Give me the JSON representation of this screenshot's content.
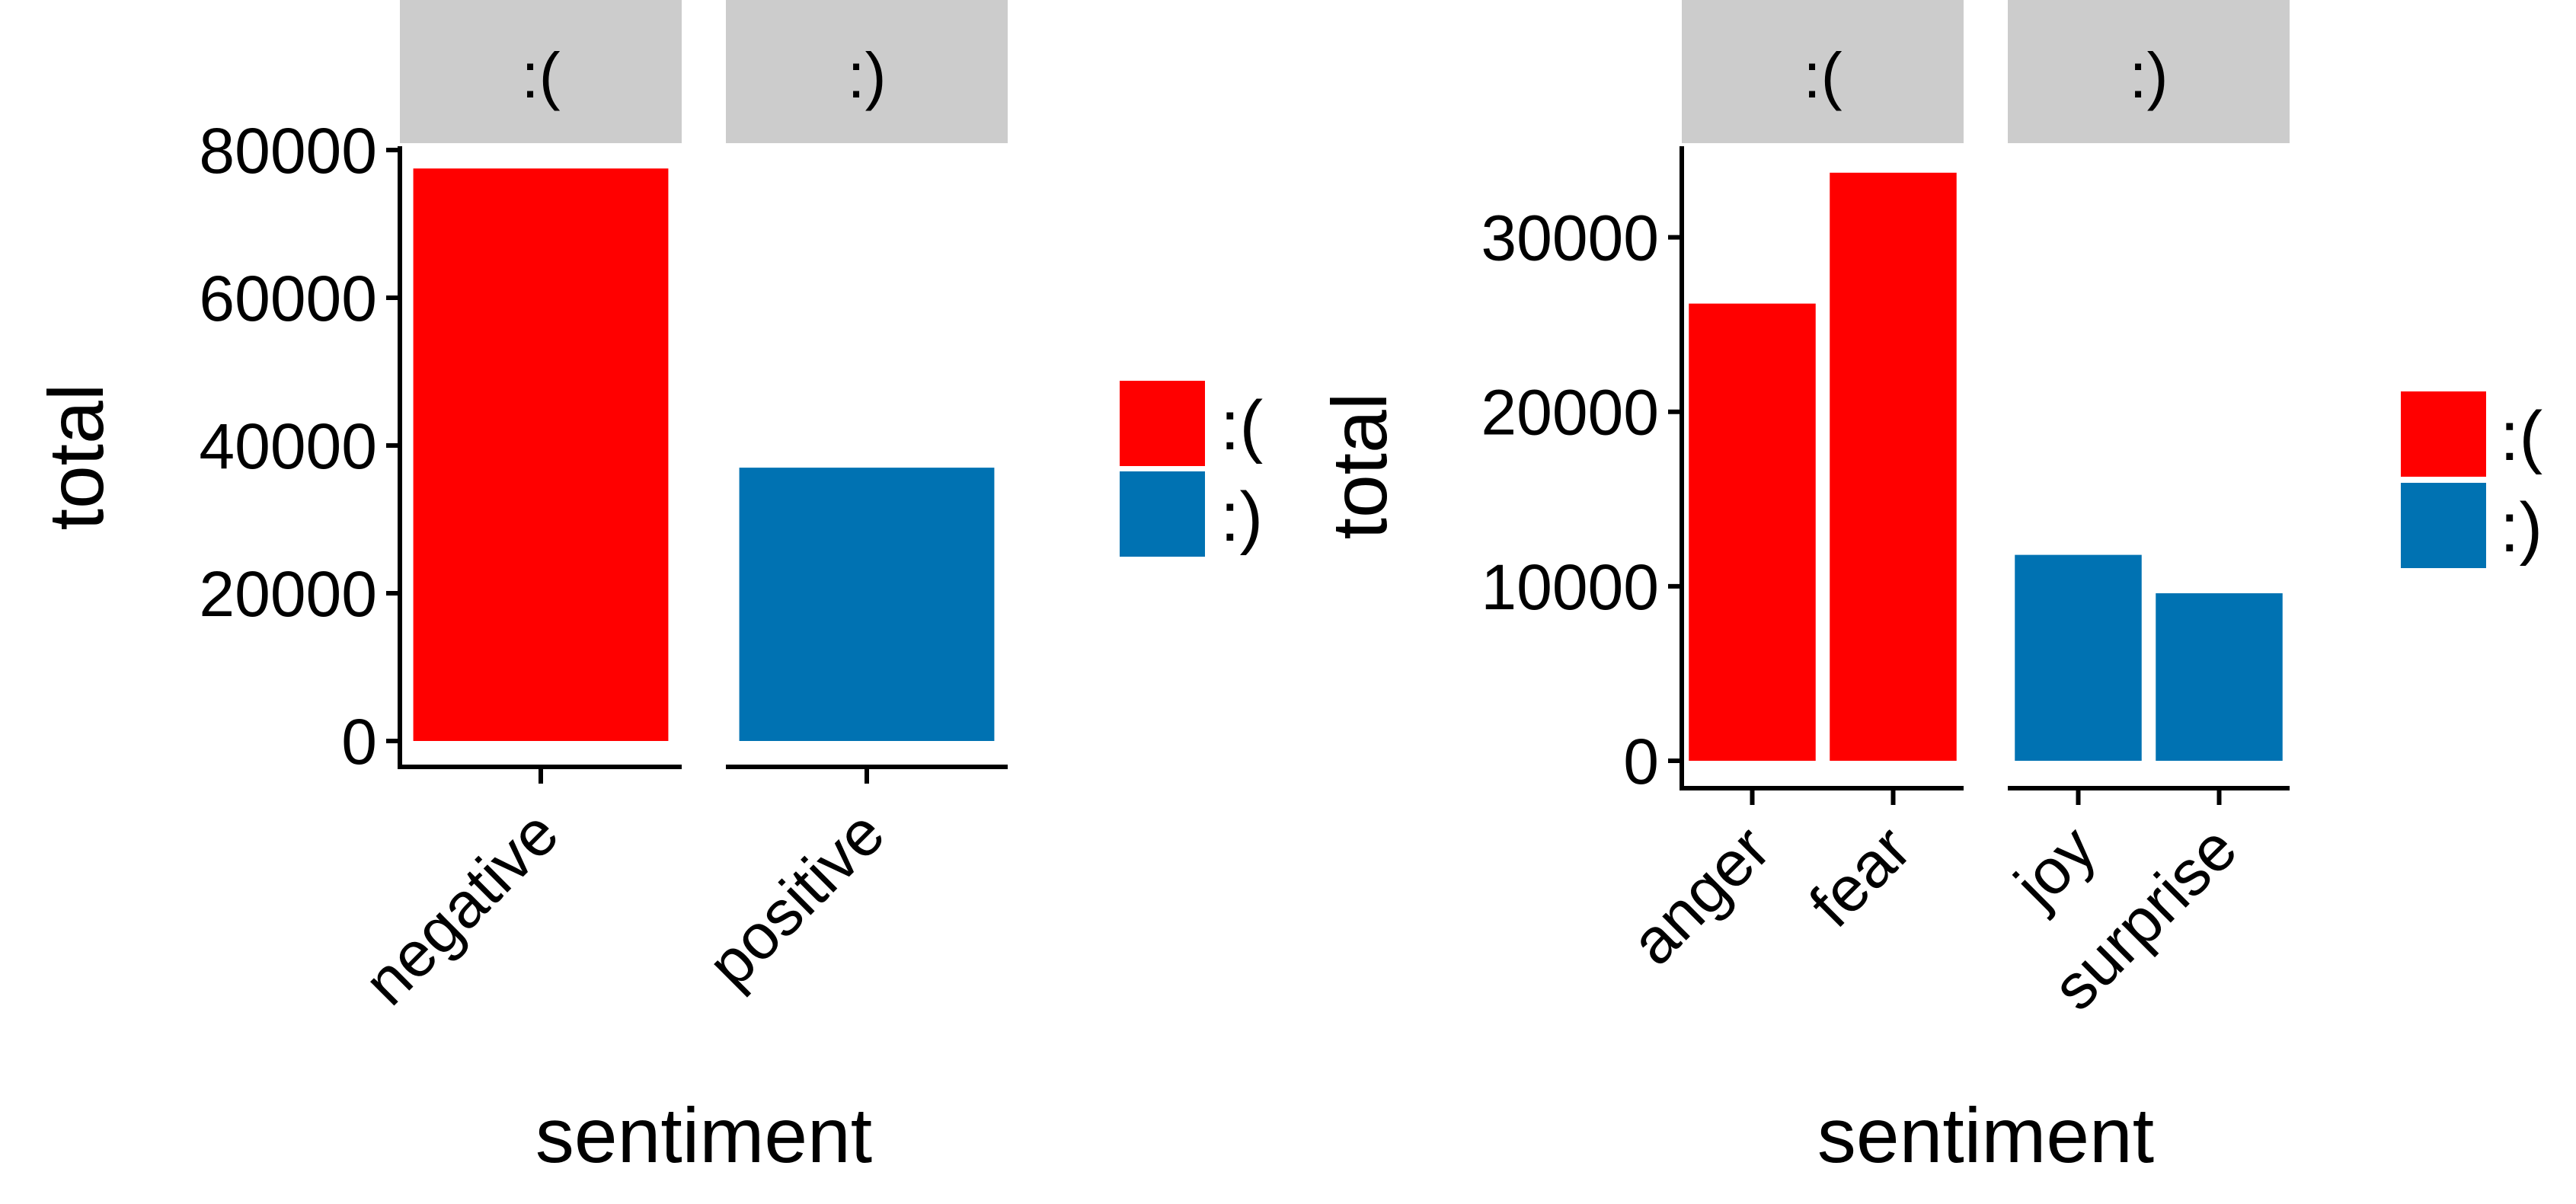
{
  "colors": {
    ":(": "#ff0000",
    ":)": "#0072b2",
    "strip_background": "#cccccc"
  },
  "chart_data": [
    {
      "type": "bar",
      "facet_panels": [
        {
          "strip": ":(",
          "categories": [
            "negative"
          ],
          "values": [
            77500
          ],
          "group": ":("
        },
        {
          "strip": ":)",
          "categories": [
            "positive"
          ],
          "values": [
            37000
          ],
          "group": ":)"
        }
      ],
      "xlabel": "sentiment",
      "ylabel": "total",
      "ylim": [
        0,
        80000
      ],
      "yticks": [
        "0",
        "20000",
        "40000",
        "60000",
        "80000"
      ],
      "legend": {
        "entries": [
          ":(",
          ":)"
        ],
        "position": "right"
      },
      "grid": false
    },
    {
      "type": "bar",
      "facet_panels": [
        {
          "strip": ":(",
          "categories": [
            "anger",
            "fear"
          ],
          "values": [
            26200,
            33700
          ],
          "group": ":("
        },
        {
          "strip": ":)",
          "categories": [
            "joy",
            "surprise"
          ],
          "values": [
            11800,
            9600
          ],
          "group": ":)"
        }
      ],
      "xlabel": "sentiment",
      "ylabel": "total",
      "ylim": [
        0,
        35000
      ],
      "yticks": [
        "0",
        "10000",
        "20000",
        "30000"
      ],
      "legend": {
        "entries": [
          ":(",
          ":)"
        ],
        "position": "right"
      },
      "grid": false
    }
  ]
}
